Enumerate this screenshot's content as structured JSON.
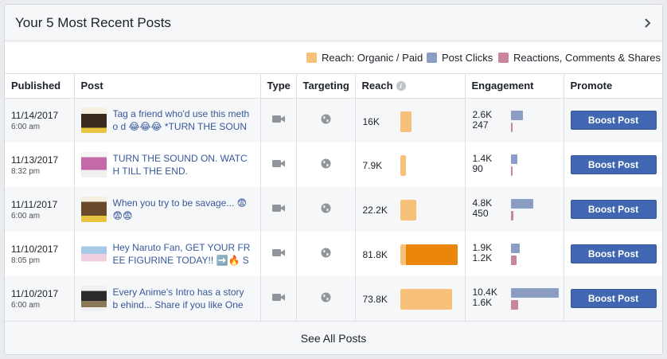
{
  "header": {
    "title": "Your 5 Most Recent Posts"
  },
  "legend": [
    {
      "label": "Reach: Organic / Paid",
      "color": "#f7c17a"
    },
    {
      "label": "Post Clicks",
      "color": "#8b9dc3"
    },
    {
      "label": "Reactions, Comments & Shares",
      "color": "#c9859e"
    }
  ],
  "columns": {
    "published": "Published",
    "post": "Post",
    "type": "Type",
    "targeting": "Targeting",
    "reach": "Reach",
    "engagement": "Engagement",
    "promote": "Promote"
  },
  "boost_label": "Boost Post",
  "footer": {
    "see_all": "See All Posts"
  },
  "posts": [
    {
      "date": "11/14/2017",
      "time": "6:00 am",
      "text": "Tag a friend who'd use this metho d 😂😂😂 *TURN THE SOUND",
      "reach": "16K",
      "reach_organic": 16000,
      "reach_paid": 0,
      "clicks": "2.6K",
      "clicks_value": 2600,
      "reactions": "247",
      "reactions_value": 247
    },
    {
      "date": "11/13/2017",
      "time": "8:32 pm",
      "text": "TURN THE SOUND ON. WATCH TILL THE END.",
      "reach": "7.9K",
      "reach_organic": 7900,
      "reach_paid": 0,
      "clicks": "1.4K",
      "clicks_value": 1400,
      "reactions": "90",
      "reactions_value": 90
    },
    {
      "date": "11/11/2017",
      "time": "6:00 am",
      "text": "When you try to be savage... 😨 😨😨",
      "reach": "22.2K",
      "reach_organic": 22200,
      "reach_paid": 0,
      "clicks": "4.8K",
      "clicks_value": 4800,
      "reactions": "450",
      "reactions_value": 450
    },
    {
      "date": "11/10/2017",
      "time": "8:05 pm",
      "text": "Hey Naruto Fan, GET YOUR FR EE FIGURINE TODAY!! ➡️🔥 S",
      "reach": "81.8K",
      "reach_organic": 8000,
      "reach_paid": 73800,
      "clicks": "1.9K",
      "clicks_value": 1900,
      "reactions": "1.2K",
      "reactions_value": 1200
    },
    {
      "date": "11/10/2017",
      "time": "6:00 am",
      "text": "Every Anime's Intro has a story b ehind... Share if you like One Pun",
      "reach": "73.8K",
      "reach_organic": 73800,
      "reach_paid": 0,
      "clicks": "10.4K",
      "clicks_value": 10400,
      "reactions": "1.6K",
      "reactions_value": 1600
    }
  ]
}
